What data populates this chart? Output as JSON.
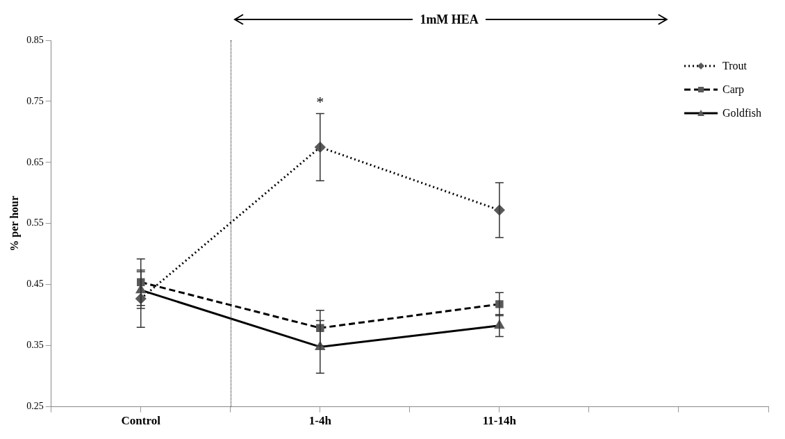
{
  "chart_data": {
    "type": "line",
    "ylabel": "% per hour",
    "categories": [
      "Control",
      "1-4h",
      "11-14h",
      null
    ],
    "ylim": [
      0.25,
      0.85
    ],
    "yticks": [
      0.25,
      0.35,
      0.45,
      0.55,
      0.65,
      0.75,
      0.85
    ],
    "grid": false,
    "legend": "top right",
    "series": [
      {
        "name": "Trout",
        "color": "#000000",
        "marker": "diamond",
        "line_style": "dotted",
        "values": [
          0.427,
          0.675,
          0.572,
          null
        ],
        "errors": [
          0.047,
          0.055,
          0.045,
          null
        ]
      },
      {
        "name": "Carp",
        "color": "#000000",
        "marker": "square",
        "line_style": "dashed",
        "values": [
          0.454,
          0.379,
          0.418,
          null
        ],
        "errors": [
          0.038,
          0.029,
          0.019,
          null
        ]
      },
      {
        "name": "Goldfish",
        "color": "#000000",
        "marker": "triangle",
        "line_style": "solid",
        "values": [
          0.441,
          0.348,
          0.383,
          null
        ],
        "errors": [
          0.03,
          0.043,
          0.018,
          null
        ]
      }
    ],
    "annotations": [
      "*",
      "1mM HEA"
    ]
  }
}
